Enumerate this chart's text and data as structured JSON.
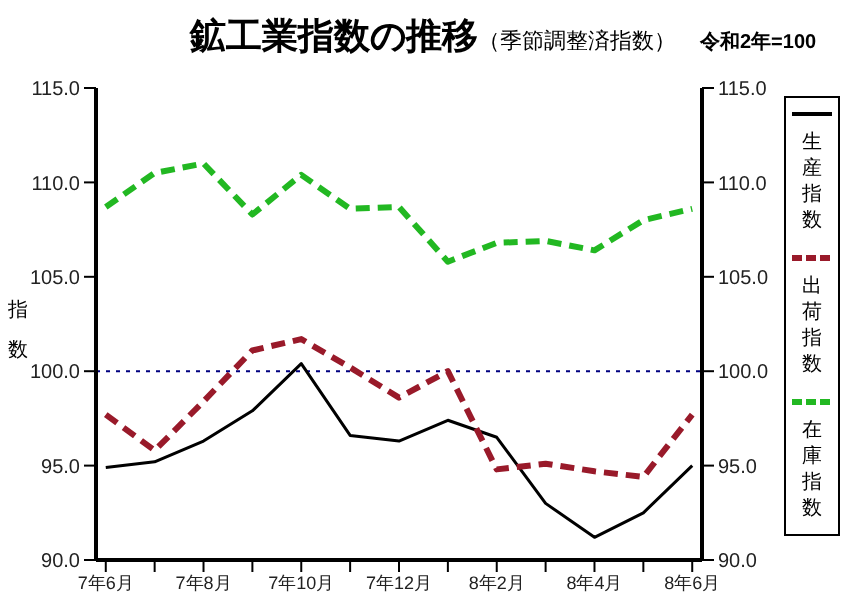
{
  "chart_data": {
    "type": "line",
    "title": "鉱工業指数の推移",
    "subtitle": "（季節調整済指数）",
    "annotations": [
      "令和2年=100"
    ],
    "ylabel": "指数",
    "categories": [
      "7年6月",
      null,
      "7年8月",
      null,
      "7年10月",
      null,
      "7年12月",
      null,
      "8年2月",
      null,
      "8年4月",
      null,
      "8年6月"
    ],
    "series": [
      {
        "name": "生産指数",
        "color": "#000000",
        "line_style": "solid",
        "values": [
          94.9,
          95.2,
          96.3,
          97.9,
          100.4,
          96.6,
          96.3,
          97.4,
          96.5,
          93.0,
          91.2,
          92.5,
          95.0
        ]
      },
      {
        "name": "出荷指数",
        "color": "#991a2a",
        "line_style": "dashed",
        "values": [
          97.7,
          95.8,
          98.4,
          101.1,
          101.7,
          100.2,
          98.6,
          100.0,
          94.8,
          95.1,
          94.7,
          94.4,
          97.7
        ]
      },
      {
        "name": "在庫指数",
        "color": "#22b822",
        "line_style": "dashed",
        "values": [
          108.7,
          110.5,
          111.0,
          108.3,
          110.4,
          108.6,
          108.7,
          105.8,
          106.8,
          106.9,
          106.4,
          108.0,
          108.6
        ]
      }
    ],
    "ylim": [
      90,
      115
    ],
    "yticks": [
      {
        "value": 90,
        "label": "90.0"
      },
      {
        "value": 95,
        "label": "95.0"
      },
      {
        "value": 100,
        "label": "100.0"
      },
      {
        "value": 105,
        "label": "105.0"
      },
      {
        "value": 110,
        "label": "110.0"
      },
      {
        "value": 115,
        "label": "115.0"
      }
    ],
    "y2lim": [
      90,
      115
    ],
    "y2ticks": [
      {
        "value": 90,
        "label": "90.0"
      },
      {
        "value": 95,
        "label": "95.0"
      },
      {
        "value": 100,
        "label": "100.0"
      },
      {
        "value": 105,
        "label": "105.0"
      },
      {
        "value": 110,
        "label": "110.0"
      },
      {
        "value": 115,
        "label": "115.0"
      }
    ],
    "ref_lines": [
      {
        "axis": "y",
        "value": 100,
        "color": "#000080",
        "line_style": "dotted"
      }
    ],
    "grid": false,
    "legend": "right",
    "marker": "none"
  }
}
